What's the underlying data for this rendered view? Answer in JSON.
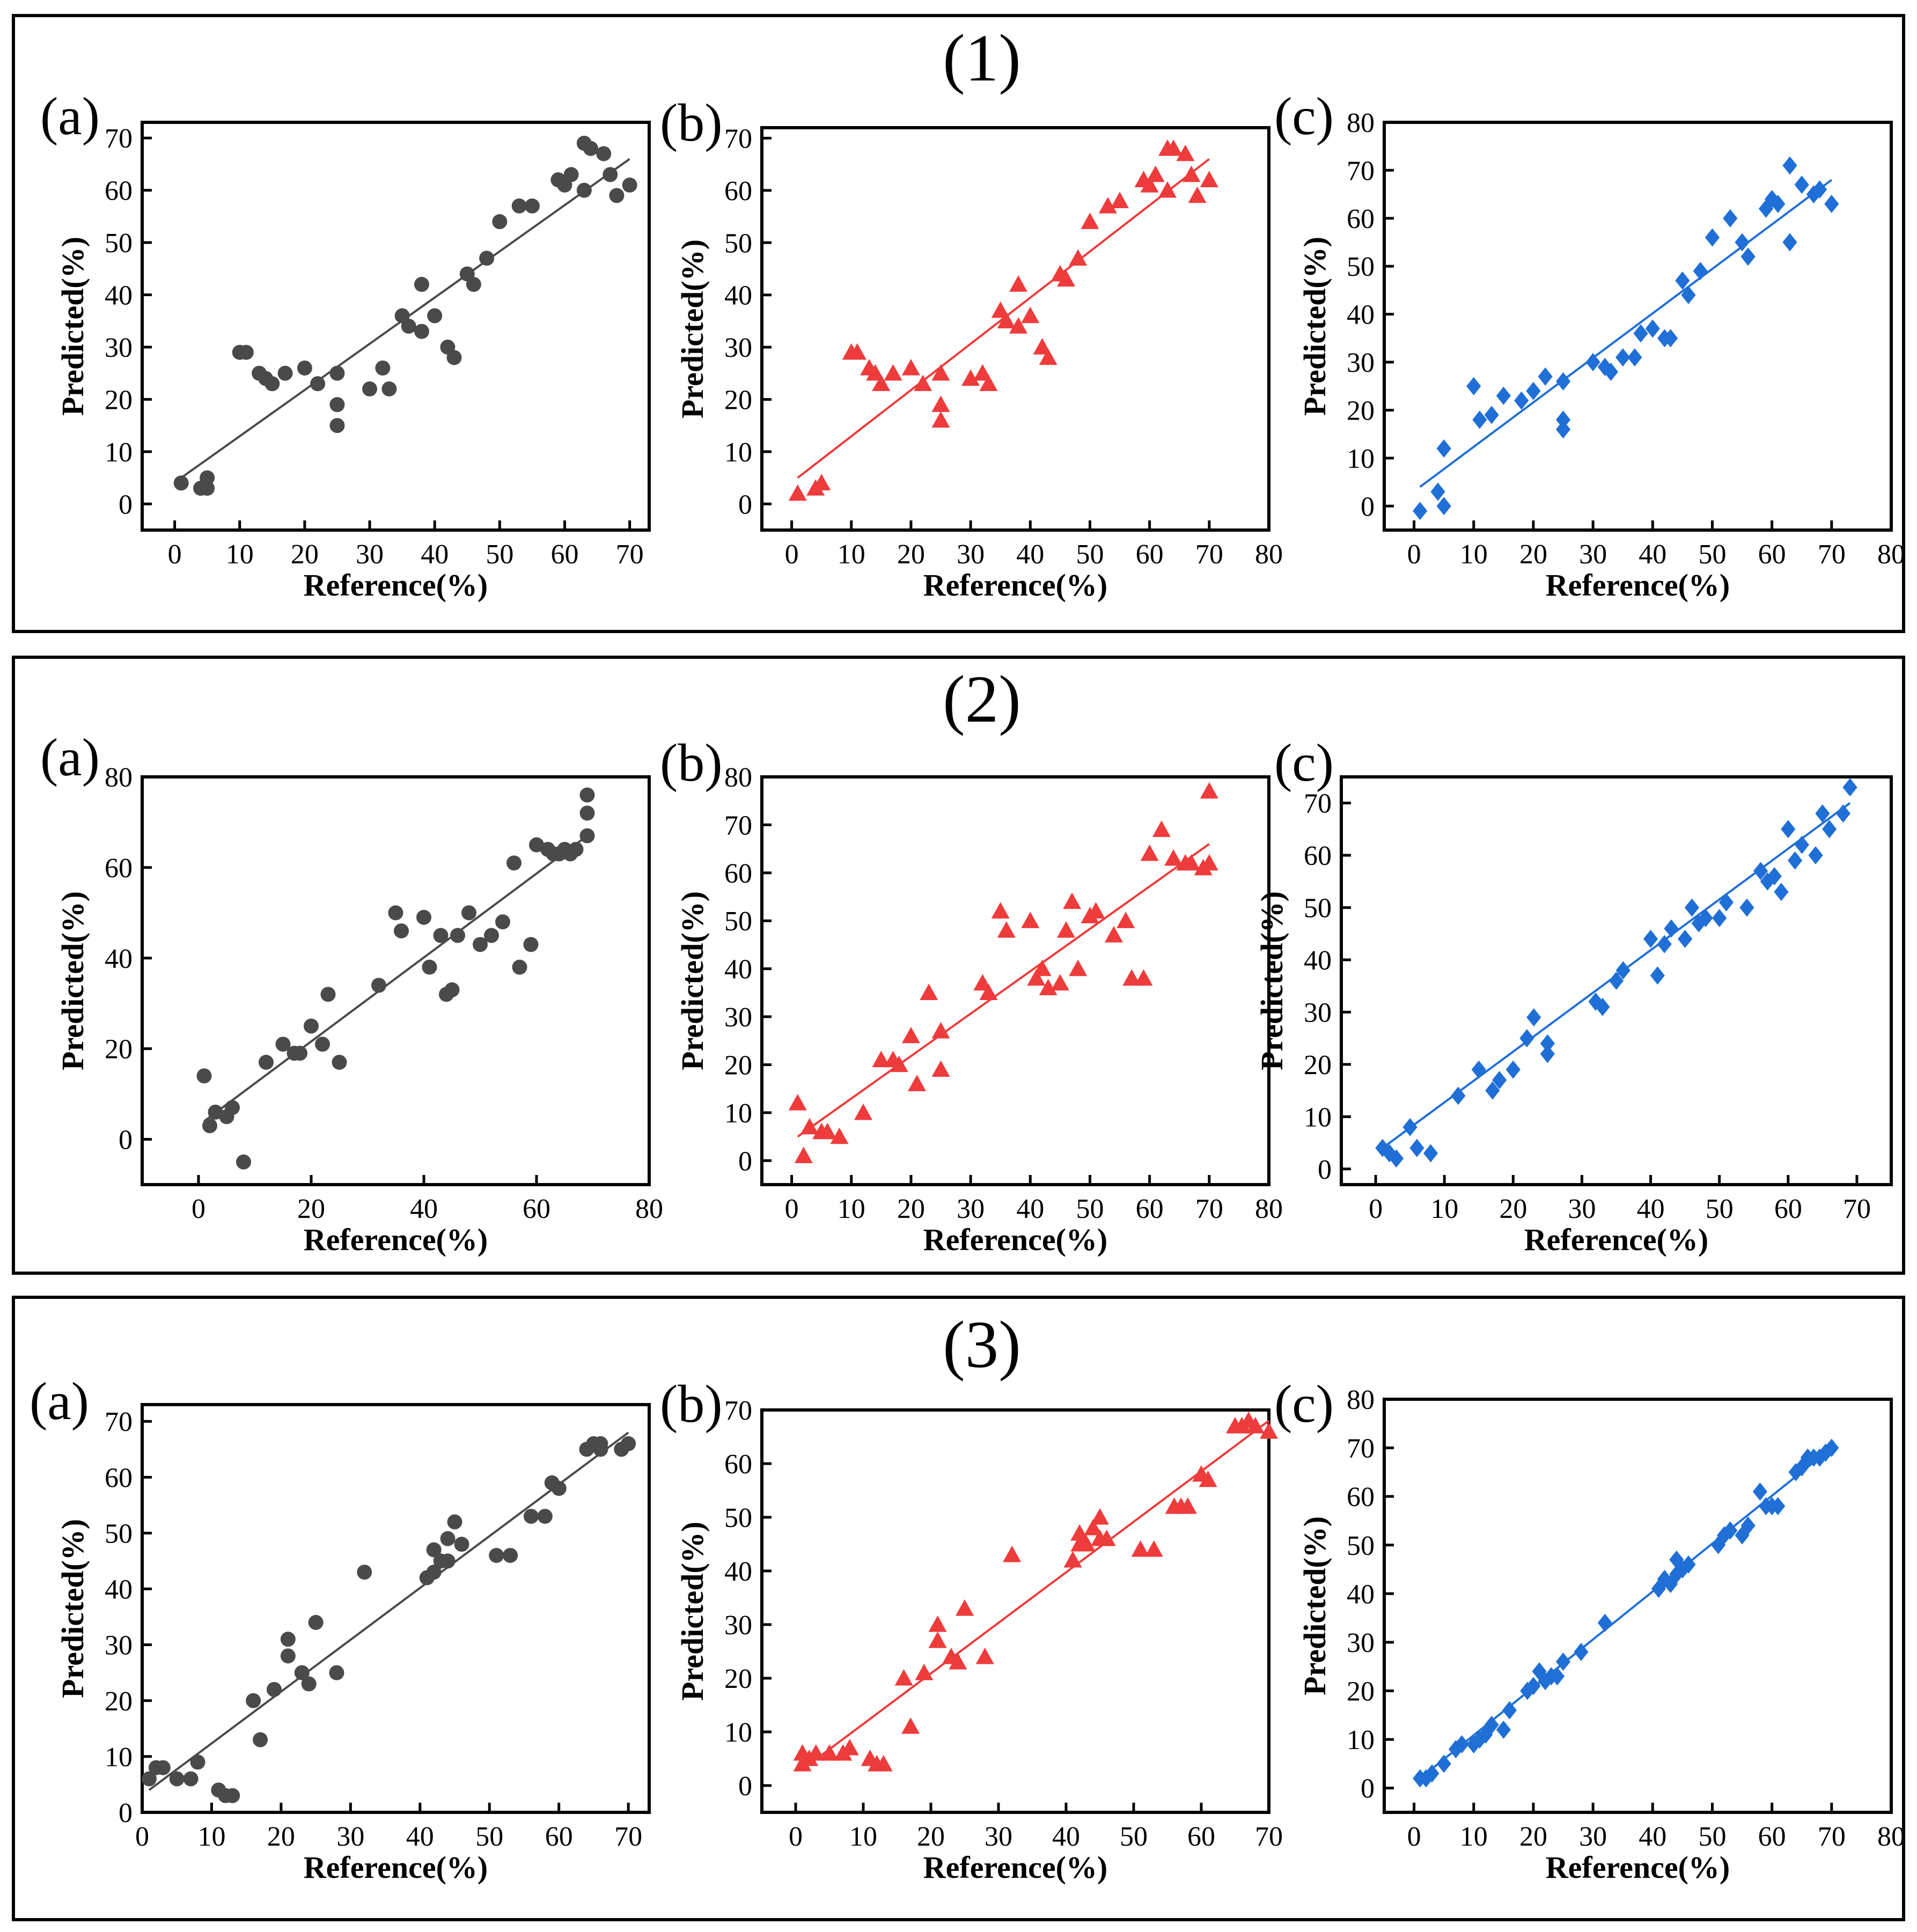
{
  "groups": [
    {
      "label": "(1)"
    },
    {
      "label": "(2)"
    },
    {
      "label": "(3)"
    }
  ],
  "colors": {
    "gray": "#4a4a4a",
    "red": "#ee3b3b",
    "blue": "#1f6fd6"
  },
  "chart_data": [
    {
      "id": "g1a",
      "type": "scatter",
      "panel_label": "(a)",
      "marker": "circle",
      "color": "#4a4a4a",
      "xlabel": "Reference(%)",
      "ylabel": "Predicted(%)",
      "xlim": [
        -5,
        73
      ],
      "ylim": [
        -5,
        73
      ],
      "xticks": [
        0,
        10,
        20,
        30,
        40,
        50,
        60,
        70
      ],
      "yticks": [
        0,
        10,
        20,
        30,
        40,
        50,
        60,
        70
      ],
      "fit": [
        [
          1,
          5
        ],
        [
          70,
          66
        ]
      ],
      "x": [
        1,
        4,
        5,
        5,
        10,
        11,
        13,
        14,
        15,
        17,
        20,
        22,
        25,
        25,
        25,
        30,
        32,
        33,
        35,
        36,
        38,
        38,
        40,
        42,
        43,
        45,
        46,
        48,
        50,
        53,
        55,
        59,
        60,
        61,
        63,
        63,
        64,
        66,
        67,
        68,
        70
      ],
      "y": [
        4,
        3,
        3,
        5,
        29,
        29,
        25,
        24,
        23,
        25,
        26,
        23,
        25,
        19,
        15,
        22,
        26,
        22,
        36,
        34,
        42,
        33,
        36,
        30,
        28,
        44,
        42,
        47,
        54,
        57,
        57,
        62,
        61,
        63,
        60,
        69,
        68,
        67,
        63,
        59,
        61
      ]
    },
    {
      "id": "g1b",
      "type": "scatter",
      "panel_label": "(b)",
      "marker": "triangle",
      "color": "#ee3b3b",
      "xlabel": "Reference(%)",
      "ylabel": "Predicted(%)",
      "xlim": [
        -5,
        80
      ],
      "ylim": [
        -5,
        72
      ],
      "xticks": [
        0,
        10,
        20,
        30,
        40,
        50,
        60,
        70,
        80
      ],
      "yticks": [
        0,
        10,
        20,
        30,
        40,
        50,
        60,
        70
      ],
      "fit": [
        [
          1,
          5
        ],
        [
          70,
          66
        ]
      ],
      "x": [
        1,
        4,
        5,
        5,
        10,
        11,
        13,
        14,
        15,
        17,
        20,
        22,
        25,
        25,
        25,
        30,
        32,
        33,
        35,
        36,
        38,
        38,
        40,
        42,
        43,
        45,
        46,
        48,
        50,
        53,
        55,
        59,
        60,
        61,
        63,
        63,
        64,
        66,
        67,
        68,
        70
      ],
      "y": [
        2,
        3,
        4,
        4,
        29,
        29,
        26,
        25,
        23,
        25,
        26,
        23,
        25,
        19,
        16,
        24,
        25,
        23,
        37,
        35,
        42,
        34,
        36,
        30,
        28,
        44,
        43,
        47,
        54,
        57,
        58,
        62,
        61,
        63,
        60,
        68,
        68,
        67,
        63,
        59,
        62
      ]
    },
    {
      "id": "g1c",
      "type": "scatter",
      "panel_label": "(c)",
      "marker": "diamond",
      "color": "#1f6fd6",
      "xlabel": "Reference(%)",
      "ylabel": "Predicted(%)",
      "xlim": [
        -5,
        80
      ],
      "ylim": [
        -5,
        80
      ],
      "xticks": [
        0,
        10,
        20,
        30,
        40,
        50,
        60,
        70,
        80
      ],
      "yticks": [
        0,
        10,
        20,
        30,
        40,
        50,
        60,
        70,
        80
      ],
      "fit": [
        [
          1,
          4
        ],
        [
          70,
          68
        ]
      ],
      "x": [
        1,
        4,
        5,
        5,
        10,
        11,
        13,
        15,
        18,
        20,
        22,
        25,
        25,
        25,
        30,
        32,
        33,
        35,
        37,
        38,
        40,
        42,
        43,
        45,
        46,
        48,
        50,
        53,
        55,
        56,
        59,
        60,
        61,
        63,
        63,
        65,
        67,
        68,
        70
      ],
      "y": [
        -1,
        3,
        0,
        12,
        25,
        18,
        19,
        23,
        22,
        24,
        27,
        26,
        18,
        16,
        30,
        29,
        28,
        31,
        31,
        36,
        37,
        35,
        35,
        47,
        44,
        49,
        56,
        60,
        55,
        52,
        62,
        64,
        63,
        71,
        55,
        67,
        65,
        66,
        63
      ]
    },
    {
      "id": "g2a",
      "type": "scatter",
      "panel_label": "(a)",
      "marker": "circle",
      "color": "#4a4a4a",
      "xlabel": "Reference(%)",
      "ylabel": "Predicted(%)",
      "xlim": [
        -10,
        80
      ],
      "ylim": [
        -10,
        80
      ],
      "xticks": [
        0,
        20,
        40,
        60,
        80
      ],
      "yticks": [
        0,
        20,
        40,
        60,
        80
      ],
      "fit": [
        [
          1,
          4
        ],
        [
          69,
          67
        ]
      ],
      "x": [
        1,
        2,
        3,
        5,
        6,
        8,
        12,
        15,
        17,
        18,
        20,
        22,
        23,
        25,
        32,
        35,
        36,
        40,
        41,
        43,
        44,
        45,
        46,
        48,
        50,
        52,
        54,
        56,
        57,
        59,
        60,
        62,
        63,
        64,
        65,
        66,
        67,
        69,
        69,
        69
      ],
      "y": [
        14,
        3,
        6,
        5,
        7,
        -5,
        17,
        21,
        19,
        19,
        25,
        21,
        32,
        17,
        34,
        50,
        46,
        49,
        38,
        45,
        32,
        33,
        45,
        50,
        43,
        45,
        48,
        61,
        38,
        43,
        65,
        64,
        63,
        63,
        64,
        63,
        64,
        67,
        72,
        76
      ]
    },
    {
      "id": "g2b",
      "type": "scatter",
      "panel_label": "(b)",
      "marker": "triangle",
      "color": "#ee3b3b",
      "xlabel": "Reference(%)",
      "ylabel": "Predicted(%)",
      "xlim": [
        -5,
        80
      ],
      "ylim": [
        -5,
        80
      ],
      "xticks": [
        0,
        10,
        20,
        30,
        40,
        50,
        60,
        70,
        80
      ],
      "yticks": [
        0,
        10,
        20,
        30,
        40,
        50,
        60,
        70,
        80
      ],
      "fit": [
        [
          1,
          5
        ],
        [
          70,
          66
        ]
      ],
      "x": [
        1,
        2,
        3,
        5,
        6,
        8,
        12,
        15,
        17,
        18,
        20,
        21,
        23,
        25,
        25,
        32,
        33,
        35,
        36,
        40,
        41,
        42,
        43,
        45,
        46,
        47,
        48,
        50,
        51,
        54,
        56,
        57,
        59,
        60,
        62,
        64,
        66,
        67,
        69,
        70,
        70
      ],
      "y": [
        12,
        1,
        7,
        6,
        6,
        5,
        10,
        21,
        21,
        20,
        26,
        16,
        35,
        19,
        27,
        37,
        35,
        52,
        48,
        50,
        38,
        40,
        36,
        37,
        48,
        54,
        40,
        51,
        52,
        47,
        50,
        38,
        38,
        64,
        69,
        63,
        62,
        62,
        61,
        62,
        77
      ]
    },
    {
      "id": "g2c",
      "type": "scatter",
      "panel_label": "(c)",
      "marker": "diamond",
      "color": "#1f6fd6",
      "xlabel": "Reference(%)",
      "ylabel": "Predicted(%)",
      "xlim": [
        -5,
        75
      ],
      "ylim": [
        -3,
        75
      ],
      "xticks": [
        0,
        10,
        20,
        30,
        40,
        50,
        60,
        70
      ],
      "yticks": [
        0,
        10,
        20,
        30,
        40,
        50,
        60,
        70
      ],
      "fit": [
        [
          1,
          4
        ],
        [
          69,
          70
        ]
      ],
      "x": [
        1,
        2,
        3,
        5,
        6,
        8,
        12,
        15,
        17,
        18,
        20,
        22,
        23,
        25,
        25,
        32,
        33,
        35,
        36,
        40,
        41,
        42,
        43,
        45,
        46,
        47,
        48,
        50,
        51,
        54,
        56,
        57,
        58,
        59,
        60,
        61,
        62,
        64,
        65,
        66,
        68,
        69
      ],
      "y": [
        4,
        3,
        2,
        8,
        4,
        3,
        14,
        19,
        15,
        17,
        19,
        25,
        29,
        22,
        24,
        32,
        31,
        36,
        38,
        44,
        37,
        43,
        46,
        44,
        50,
        47,
        48,
        48,
        51,
        50,
        57,
        55,
        56,
        53,
        65,
        59,
        62,
        60,
        68,
        65,
        68,
        73
      ]
    },
    {
      "id": "g3a",
      "type": "scatter",
      "panel_label": "(a)",
      "marker": "circle",
      "color": "#4a4a4a",
      "xlabel": "Reference(%)",
      "ylabel": "Predicted(%)",
      "xlim": [
        0,
        73
      ],
      "ylim": [
        0,
        73
      ],
      "xticks": [
        0,
        10,
        20,
        30,
        40,
        50,
        60,
        70
      ],
      "yticks": [
        0,
        10,
        20,
        30,
        40,
        50,
        60,
        70
      ],
      "fit": [
        [
          1,
          4
        ],
        [
          70,
          68
        ]
      ],
      "x": [
        1,
        2,
        3,
        5,
        7,
        8,
        11,
        12,
        13,
        16,
        17,
        19,
        21,
        21,
        23,
        24,
        25,
        28,
        32,
        41,
        42,
        42,
        43,
        44,
        44,
        45,
        46,
        51,
        53,
        56,
        58,
        59,
        60,
        64,
        65,
        66,
        66,
        69,
        70
      ],
      "y": [
        6,
        8,
        8,
        6,
        6,
        9,
        4,
        3,
        3,
        20,
        13,
        22,
        28,
        31,
        25,
        23,
        34,
        25,
        43,
        42,
        43,
        47,
        45,
        49,
        45,
        52,
        48,
        46,
        46,
        53,
        53,
        59,
        58,
        65,
        66,
        65,
        66,
        65,
        66
      ]
    },
    {
      "id": "g3b",
      "type": "scatter",
      "panel_label": "(b)",
      "marker": "triangle",
      "color": "#ee3b3b",
      "xlabel": "Reference(%)",
      "ylabel": "Predicted(%)",
      "xlim": [
        -5,
        70
      ],
      "ylim": [
        -5,
        70
      ],
      "xticks": [
        0,
        10,
        20,
        30,
        40,
        50,
        60,
        70
      ],
      "yticks": [
        0,
        10,
        20,
        30,
        40,
        50,
        60,
        70
      ],
      "fit": [
        [
          1,
          3
        ],
        [
          70,
          68
        ]
      ],
      "x": [
        1,
        1,
        2,
        3,
        5,
        7,
        8,
        11,
        12,
        13,
        16,
        17,
        19,
        21,
        21,
        23,
        24,
        25,
        28,
        32,
        41,
        42,
        42,
        43,
        44,
        45,
        45,
        46,
        51,
        53,
        56,
        57,
        58,
        60,
        61,
        65,
        66,
        67,
        68,
        70
      ],
      "y": [
        4,
        6,
        5,
        6,
        6,
        6,
        7,
        5,
        4,
        4,
        20,
        11,
        21,
        30,
        27,
        24,
        23,
        33,
        24,
        43,
        42,
        47,
        45,
        45,
        48,
        46,
        50,
        46,
        44,
        44,
        52,
        52,
        52,
        58,
        57,
        67,
        67,
        68,
        67,
        66
      ]
    },
    {
      "id": "g3c",
      "type": "scatter",
      "panel_label": "(c)",
      "marker": "diamond",
      "color": "#1f6fd6",
      "xlabel": "Reference(%)",
      "ylabel": "Predicted(%)",
      "xlim": [
        -5,
        80
      ],
      "ylim": [
        -5,
        80
      ],
      "xticks": [
        0,
        10,
        20,
        30,
        40,
        50,
        60,
        70,
        80
      ],
      "yticks": [
        0,
        10,
        20,
        30,
        40,
        50,
        60,
        70,
        80
      ],
      "fit": [
        [
          1,
          2
        ],
        [
          70,
          70
        ]
      ],
      "x": [
        1,
        2,
        3,
        5,
        7,
        8,
        10,
        11,
        12,
        13,
        15,
        16,
        19,
        20,
        21,
        22,
        23,
        24,
        25,
        28,
        32,
        41,
        42,
        42,
        43,
        44,
        44,
        45,
        46,
        51,
        52,
        53,
        55,
        56,
        58,
        59,
        60,
        61,
        64,
        65,
        66,
        67,
        68,
        69,
        70
      ],
      "y": [
        2,
        2,
        3,
        5,
        8,
        9,
        9,
        10,
        11,
        13,
        12,
        16,
        20,
        21,
        24,
        22,
        23,
        23,
        26,
        28,
        34,
        41,
        43,
        43,
        42,
        44,
        47,
        45,
        46,
        50,
        52,
        53,
        52,
        54,
        61,
        58,
        58,
        58,
        65,
        66,
        68,
        68,
        68,
        69,
        70
      ]
    }
  ]
}
